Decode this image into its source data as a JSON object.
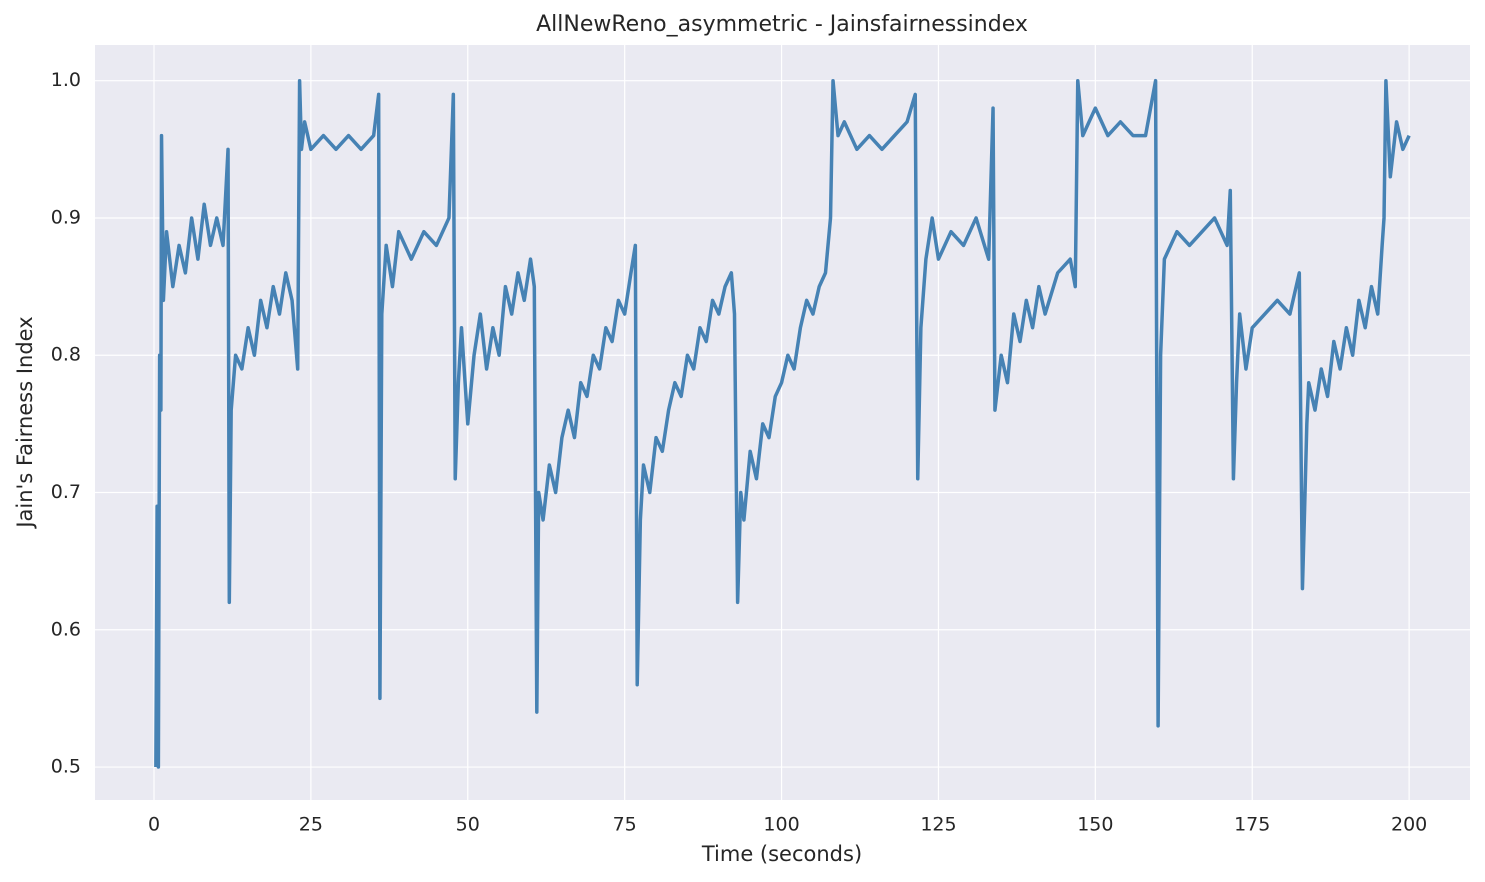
{
  "chart_data": {
    "type": "line",
    "title": "AllNewReno_asymmetric - Jainsfairnessindex",
    "x_label": "Time (seconds)",
    "y_label": "Jain's Fairness Index",
    "xlim": [
      -9.4,
      209.7
    ],
    "ylim": [
      0.476,
      1.026
    ],
    "xticks": [
      0,
      25,
      50,
      75,
      100,
      125,
      150,
      175,
      200
    ],
    "yticks": [
      0.5,
      0.6,
      0.7,
      0.8,
      0.9,
      {
        "value": 1,
        "label": "1.0"
      }
    ],
    "grid": true,
    "series": [
      {
        "name": "Jain's Fairness Index",
        "color": "#4682b4",
        "x": [
          0.3,
          0.5,
          0.7,
          0.9,
          1.1,
          1.2,
          1.5,
          2,
          3,
          4,
          5,
          6,
          7,
          8,
          9,
          10,
          11,
          11.8,
          12,
          12.3,
          13,
          14,
          15,
          16,
          17,
          18,
          19,
          20,
          21,
          22,
          22.9,
          23.2,
          23.5,
          24,
          25,
          27,
          29,
          31,
          33,
          35,
          35.8,
          36,
          36.3,
          37,
          38,
          39,
          41,
          43,
          45,
          47,
          47.7,
          48,
          48.5,
          49,
          50,
          51,
          52,
          53,
          54,
          55,
          56,
          57,
          58,
          59,
          60,
          60.6,
          61,
          61.3,
          62,
          63,
          64,
          65,
          66,
          67,
          68,
          69,
          70,
          71,
          72,
          73,
          74,
          75,
          76,
          76.7,
          77,
          77.5,
          78,
          79,
          80,
          81,
          82,
          83,
          84,
          85,
          86,
          87,
          88,
          89,
          90,
          91,
          92,
          92.5,
          93,
          93.5,
          94,
          95,
          96,
          97,
          98,
          99,
          100,
          101,
          102,
          103,
          104,
          105,
          106,
          107,
          107.8,
          108.2,
          109,
          110,
          112,
          114,
          116,
          118,
          120,
          121.3,
          121.7,
          122.2,
          123,
          124,
          125,
          127,
          129,
          131,
          133,
          133.7,
          134,
          135,
          136,
          137,
          138,
          139,
          140,
          141,
          142,
          144,
          146,
          146.8,
          147.2,
          148,
          150,
          152,
          154,
          156,
          158,
          159.6,
          160,
          160.4,
          161,
          163,
          165,
          167,
          169,
          171,
          171.5,
          172,
          172.5,
          173,
          174,
          175,
          177,
          179,
          181,
          182.5,
          183,
          183.3,
          183.7,
          184,
          185,
          186,
          187,
          188,
          189,
          190,
          191,
          192,
          193,
          194,
          195,
          195.7,
          196,
          196.3,
          197,
          198,
          199,
          200
        ],
        "values": [
          0.5,
          0.69,
          0.5,
          0.8,
          0.76,
          0.96,
          0.84,
          0.89,
          0.85,
          0.88,
          0.86,
          0.9,
          0.87,
          0.91,
          0.88,
          0.9,
          0.88,
          0.95,
          0.62,
          0.76,
          0.8,
          0.79,
          0.82,
          0.8,
          0.84,
          0.82,
          0.85,
          0.83,
          0.86,
          0.84,
          0.79,
          1.0,
          0.95,
          0.97,
          0.95,
          0.96,
          0.95,
          0.96,
          0.95,
          0.96,
          0.99,
          0.55,
          0.83,
          0.88,
          0.85,
          0.89,
          0.87,
          0.89,
          0.88,
          0.9,
          0.99,
          0.71,
          0.78,
          0.82,
          0.75,
          0.8,
          0.83,
          0.79,
          0.82,
          0.8,
          0.85,
          0.83,
          0.86,
          0.84,
          0.87,
          0.85,
          0.54,
          0.7,
          0.68,
          0.72,
          0.7,
          0.74,
          0.76,
          0.74,
          0.78,
          0.77,
          0.8,
          0.79,
          0.82,
          0.81,
          0.84,
          0.83,
          0.86,
          0.88,
          0.56,
          0.68,
          0.72,
          0.7,
          0.74,
          0.73,
          0.76,
          0.78,
          0.77,
          0.8,
          0.79,
          0.82,
          0.81,
          0.84,
          0.83,
          0.85,
          0.86,
          0.83,
          0.62,
          0.7,
          0.68,
          0.73,
          0.71,
          0.75,
          0.74,
          0.77,
          0.78,
          0.8,
          0.79,
          0.82,
          0.84,
          0.83,
          0.85,
          0.86,
          0.9,
          1.0,
          0.96,
          0.97,
          0.95,
          0.96,
          0.95,
          0.96,
          0.97,
          0.99,
          0.71,
          0.82,
          0.87,
          0.9,
          0.87,
          0.89,
          0.88,
          0.9,
          0.87,
          0.98,
          0.76,
          0.8,
          0.78,
          0.83,
          0.81,
          0.84,
          0.82,
          0.85,
          0.83,
          0.86,
          0.87,
          0.85,
          1.0,
          0.96,
          0.98,
          0.96,
          0.97,
          0.96,
          0.96,
          1.0,
          0.53,
          0.8,
          0.87,
          0.89,
          0.88,
          0.89,
          0.9,
          0.88,
          0.92,
          0.71,
          0.78,
          0.83,
          0.79,
          0.82,
          0.83,
          0.84,
          0.83,
          0.86,
          0.63,
          0.68,
          0.75,
          0.78,
          0.76,
          0.79,
          0.77,
          0.81,
          0.79,
          0.82,
          0.8,
          0.84,
          0.82,
          0.85,
          0.83,
          0.88,
          0.9,
          1.0,
          0.93,
          0.97,
          0.95,
          0.96
        ]
      }
    ]
  }
}
